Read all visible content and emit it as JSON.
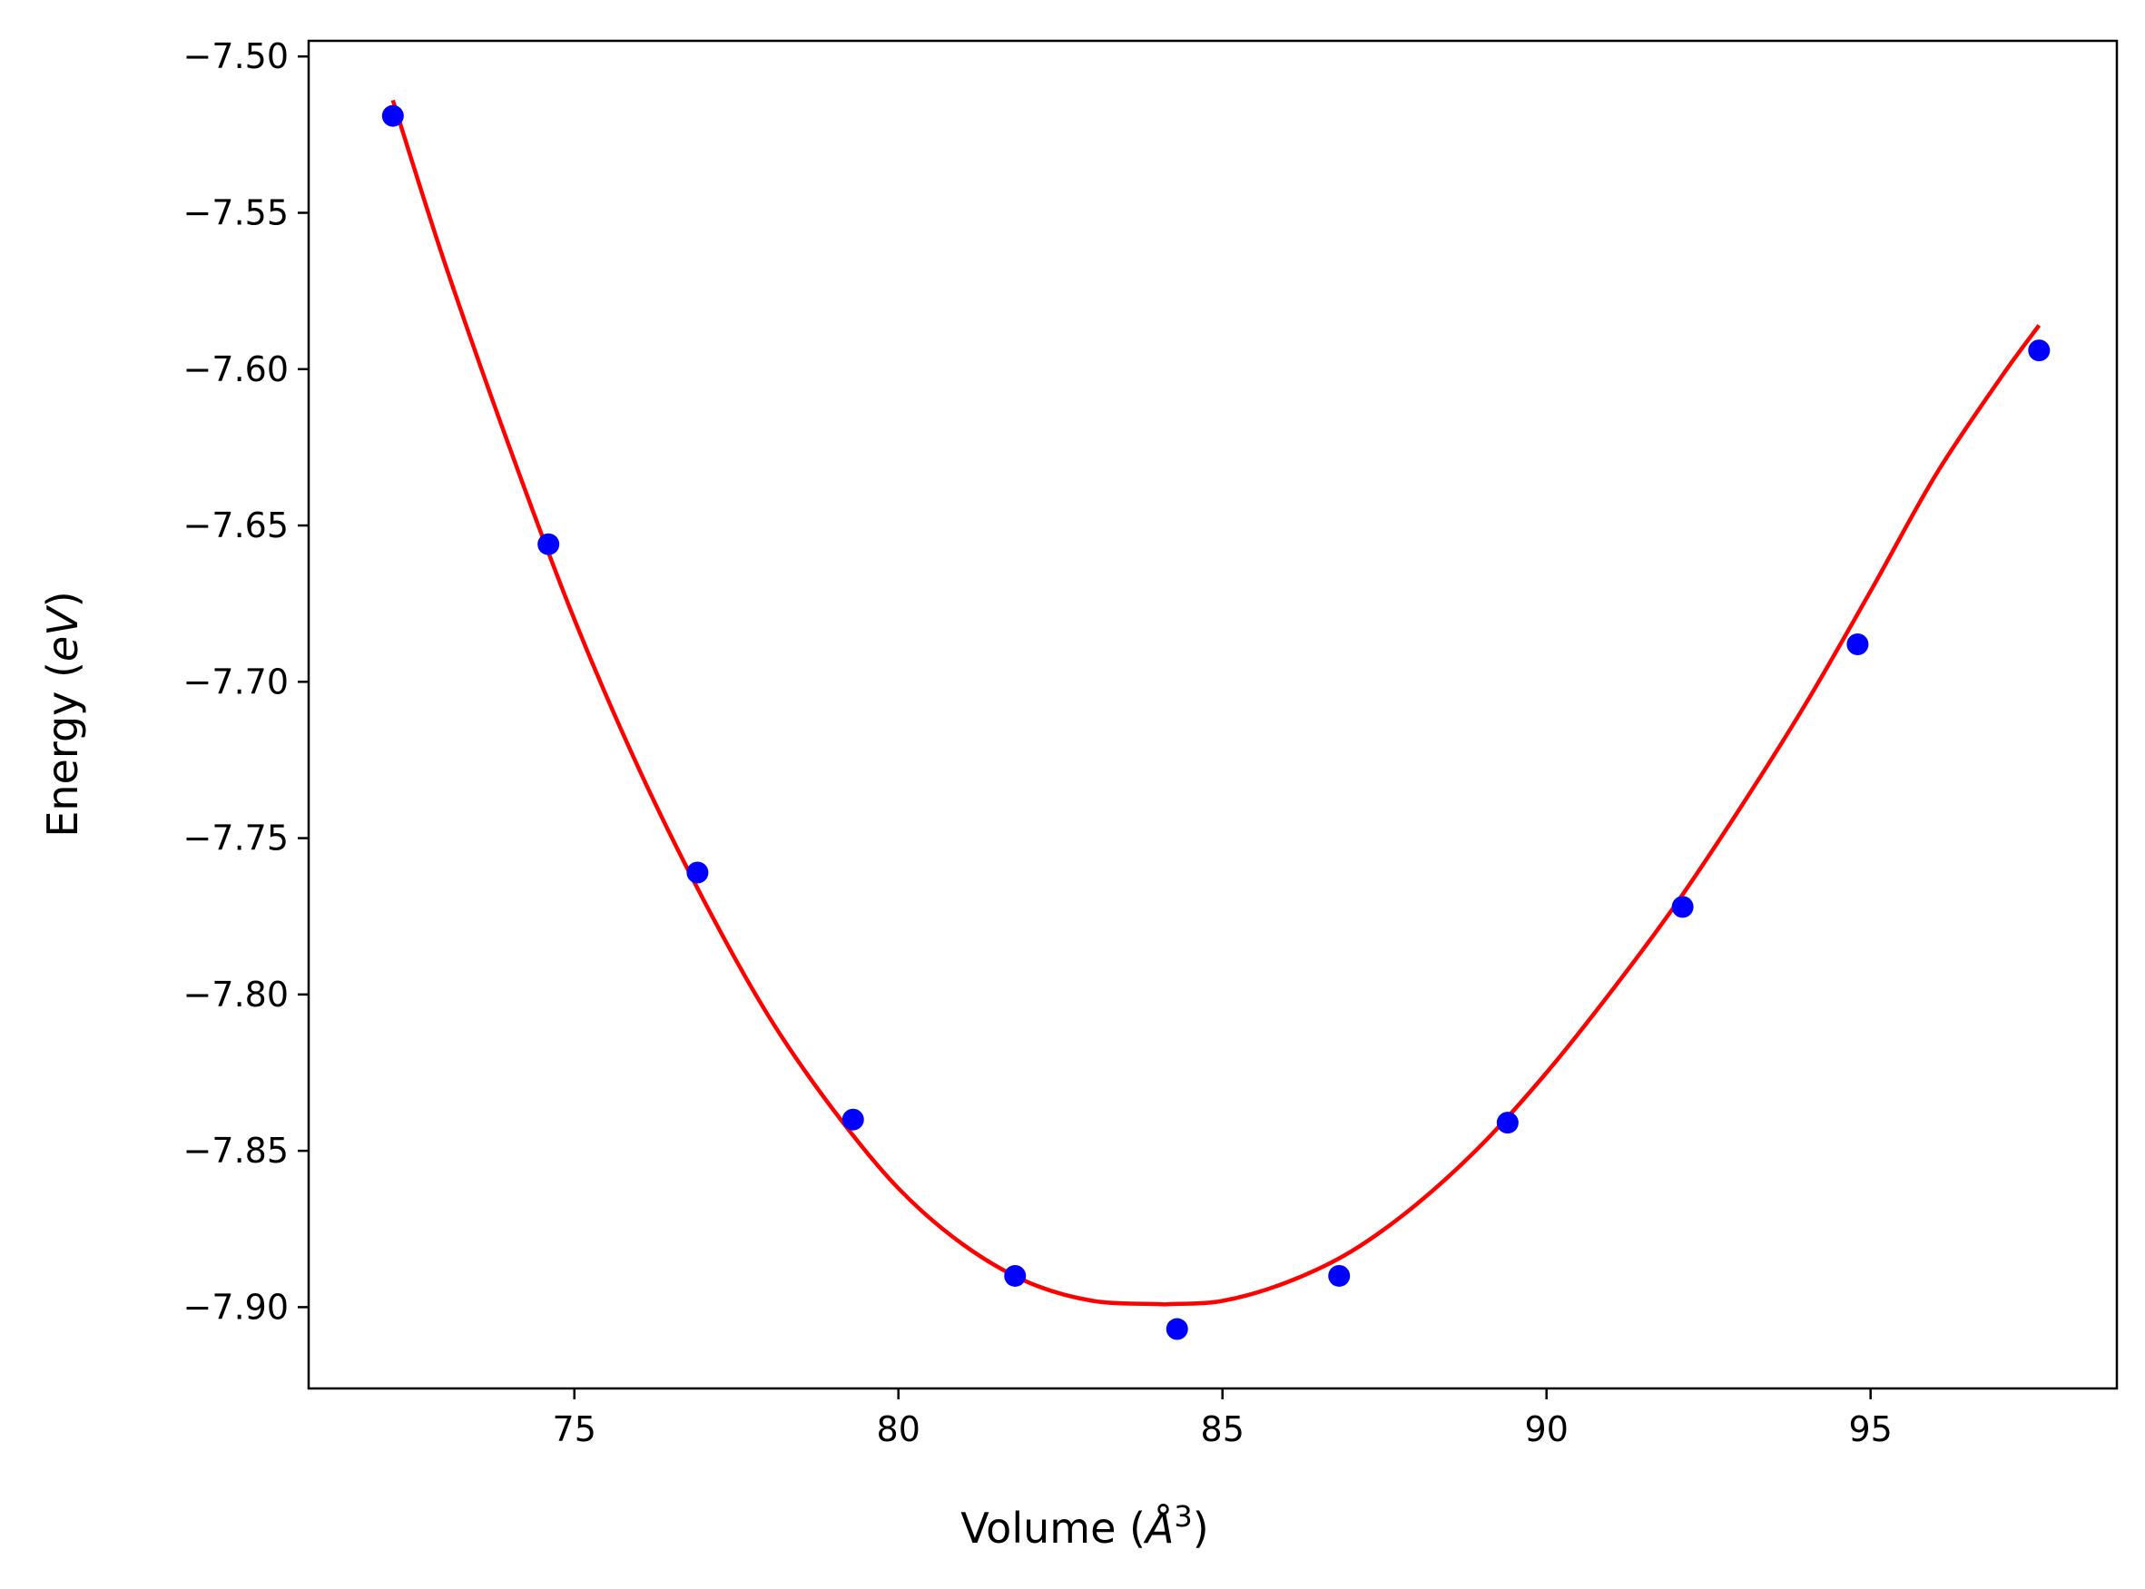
{
  "chart_data": {
    "type": "scatter",
    "title": "",
    "xlabel": "Volume (",
    "xlabel_symbol": "Å",
    "xlabel_sup": "3",
    "xlabel_close": ")",
    "ylabel": "Energy (",
    "ylabel_unit": "eV",
    "ylabel_close": ")",
    "xlim": [
      70.9,
      98.8
    ],
    "ylim": [
      -7.926,
      -7.495
    ],
    "x_ticks": [
      75,
      80,
      85,
      90,
      95
    ],
    "y_ticks": [
      -7.5,
      -7.55,
      -7.6,
      -7.65,
      -7.7,
      -7.75,
      -7.8,
      -7.85,
      -7.9
    ],
    "x_tick_labels": [
      "75",
      "80",
      "85",
      "90",
      "95"
    ],
    "y_tick_labels": [
      "−7.50",
      "−7.55",
      "−7.60",
      "−7.65",
      "−7.70",
      "−7.75",
      "−7.80",
      "−7.85",
      "−7.90"
    ],
    "grid": false,
    "series": [
      {
        "kind": "points",
        "color": "#0000ff",
        "x": [
          72.2,
          74.6,
          76.9,
          79.3,
          81.8,
          84.3,
          86.8,
          89.4,
          92.1,
          94.8,
          97.6
        ],
        "y": [
          -7.519,
          -7.656,
          -7.761,
          -7.84,
          -7.89,
          -7.907,
          -7.89,
          -7.841,
          -7.772,
          -7.688,
          -7.594
        ]
      },
      {
        "kind": "fit-curve",
        "color": "#ff0000",
        "x": [
          72.2,
          73.0,
          74.0,
          75.0,
          76.0,
          77.0,
          78.0,
          79.0,
          80.0,
          81.0,
          82.0,
          83.0,
          84.0,
          84.2,
          85.0,
          86.0,
          87.0,
          88.0,
          89.0,
          90.0,
          91.0,
          92.0,
          93.0,
          94.0,
          95.0,
          96.0,
          97.0,
          97.6
        ],
        "y": [
          -7.514,
          -7.566,
          -7.625,
          -7.68,
          -7.728,
          -7.77,
          -7.807,
          -7.837,
          -7.862,
          -7.88,
          -7.892,
          -7.898,
          -7.899,
          -7.899,
          -7.898,
          -7.892,
          -7.882,
          -7.867,
          -7.848,
          -7.825,
          -7.799,
          -7.771,
          -7.74,
          -7.707,
          -7.671,
          -7.634,
          -7.603,
          -7.586
        ]
      }
    ]
  }
}
